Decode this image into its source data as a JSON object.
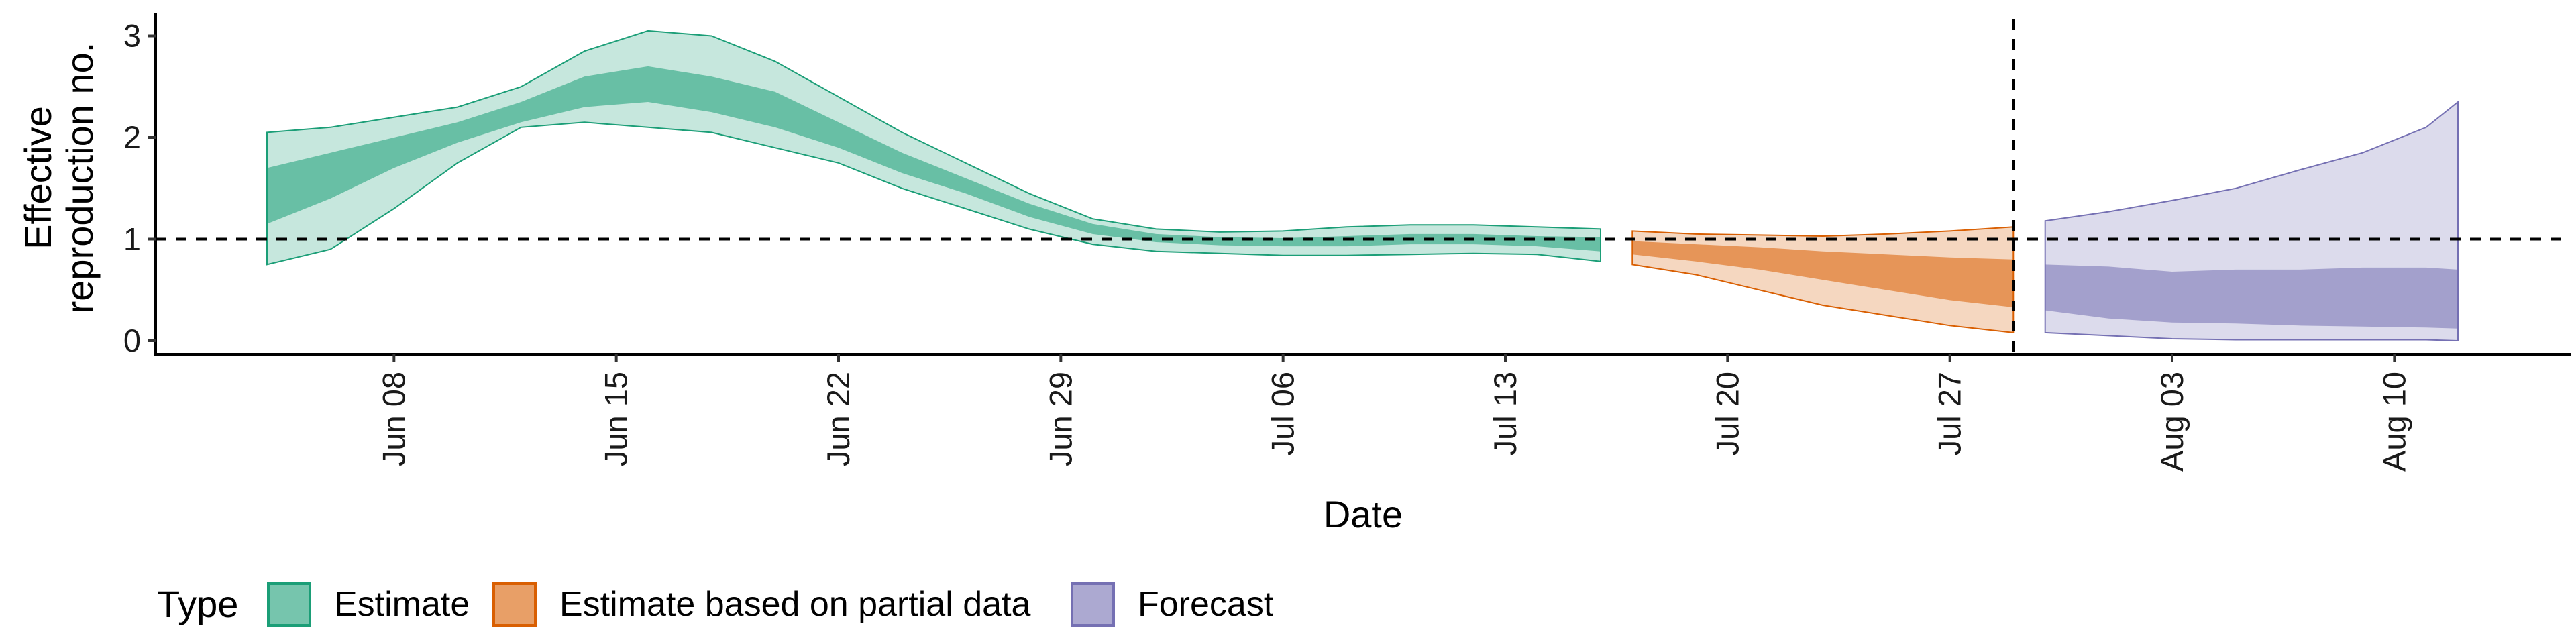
{
  "chart_data": {
    "type": "area",
    "title": "",
    "xlabel": "Date",
    "ylabel_lines": [
      "Effective",
      "reproduction no."
    ],
    "ylim": [
      -0.12,
      3.2
    ],
    "y_ticks": [
      0,
      1,
      2,
      3
    ],
    "x_start": "2020-06-04",
    "x_end": "2020-08-12",
    "x_ticks": [
      {
        "date": "2020-06-08",
        "label": "Jun 08"
      },
      {
        "date": "2020-06-15",
        "label": "Jun 15"
      },
      {
        "date": "2020-06-22",
        "label": "Jun 22"
      },
      {
        "date": "2020-06-29",
        "label": "Jun 29"
      },
      {
        "date": "2020-07-06",
        "label": "Jul 06"
      },
      {
        "date": "2020-07-13",
        "label": "Jul 13"
      },
      {
        "date": "2020-07-20",
        "label": "Jul 20"
      },
      {
        "date": "2020-07-27",
        "label": "Jul 27"
      },
      {
        "date": "2020-08-03",
        "label": "Aug 03"
      },
      {
        "date": "2020-08-10",
        "label": "Aug 10"
      }
    ],
    "reference_line_y": 1,
    "vertical_line_date": "2020-07-29",
    "grid": false,
    "legend_position": "bottom-left",
    "legend_title": "Type",
    "series": [
      {
        "name": "Estimate",
        "fill": "#1b9e77",
        "dates": [
          "2020-06-04",
          "2020-06-06",
          "2020-06-08",
          "2020-06-10",
          "2020-06-12",
          "2020-06-14",
          "2020-06-16",
          "2020-06-18",
          "2020-06-20",
          "2020-06-22",
          "2020-06-24",
          "2020-06-26",
          "2020-06-28",
          "2020-06-30",
          "2020-07-02",
          "2020-07-04",
          "2020-07-06",
          "2020-07-08",
          "2020-07-10",
          "2020-07-12",
          "2020-07-14",
          "2020-07-16"
        ],
        "outer_upper": [
          2.05,
          2.1,
          2.2,
          2.3,
          2.5,
          2.85,
          3.05,
          3.0,
          2.75,
          2.4,
          2.05,
          1.75,
          1.45,
          1.2,
          1.1,
          1.07,
          1.08,
          1.12,
          1.14,
          1.14,
          1.12,
          1.1
        ],
        "outer_lower": [
          0.75,
          0.9,
          1.3,
          1.75,
          2.1,
          2.15,
          2.1,
          2.05,
          1.9,
          1.75,
          1.5,
          1.3,
          1.1,
          0.95,
          0.88,
          0.86,
          0.84,
          0.84,
          0.85,
          0.86,
          0.85,
          0.78
        ],
        "inner_upper": [
          1.7,
          1.85,
          2.0,
          2.15,
          2.35,
          2.6,
          2.7,
          2.6,
          2.45,
          2.15,
          1.85,
          1.6,
          1.35,
          1.15,
          1.05,
          1.02,
          1.01,
          1.03,
          1.05,
          1.05,
          1.03,
          1.02
        ],
        "inner_lower": [
          1.15,
          1.4,
          1.7,
          1.95,
          2.15,
          2.3,
          2.35,
          2.25,
          2.1,
          1.9,
          1.65,
          1.45,
          1.22,
          1.05,
          0.97,
          0.94,
          0.93,
          0.93,
          0.95,
          0.95,
          0.93,
          0.88
        ]
      },
      {
        "name": "Estimate based on partial data",
        "fill": "#d95f02",
        "dates": [
          "2020-07-17",
          "2020-07-19",
          "2020-07-21",
          "2020-07-23",
          "2020-07-25",
          "2020-07-27",
          "2020-07-29"
        ],
        "outer_upper": [
          1.08,
          1.05,
          1.04,
          1.03,
          1.05,
          1.08,
          1.12
        ],
        "outer_lower": [
          0.75,
          0.65,
          0.5,
          0.35,
          0.25,
          0.15,
          0.08
        ],
        "inner_upper": [
          0.98,
          0.95,
          0.92,
          0.88,
          0.85,
          0.82,
          0.8
        ],
        "inner_lower": [
          0.85,
          0.78,
          0.7,
          0.6,
          0.5,
          0.4,
          0.33
        ]
      },
      {
        "name": "Forecast",
        "fill": "#7570b3",
        "dates": [
          "2020-07-30",
          "2020-08-01",
          "2020-08-03",
          "2020-08-05",
          "2020-08-07",
          "2020-08-09",
          "2020-08-11",
          "2020-08-12"
        ],
        "outer_upper": [
          1.18,
          1.27,
          1.38,
          1.5,
          1.68,
          1.85,
          2.1,
          2.35
        ],
        "outer_lower": [
          0.08,
          0.05,
          0.02,
          0.01,
          0.01,
          0.01,
          0.01,
          0.0
        ],
        "inner_upper": [
          0.75,
          0.73,
          0.68,
          0.7,
          0.7,
          0.72,
          0.72,
          0.7
        ],
        "inner_lower": [
          0.3,
          0.22,
          0.18,
          0.17,
          0.15,
          0.14,
          0.13,
          0.12
        ]
      }
    ]
  }
}
